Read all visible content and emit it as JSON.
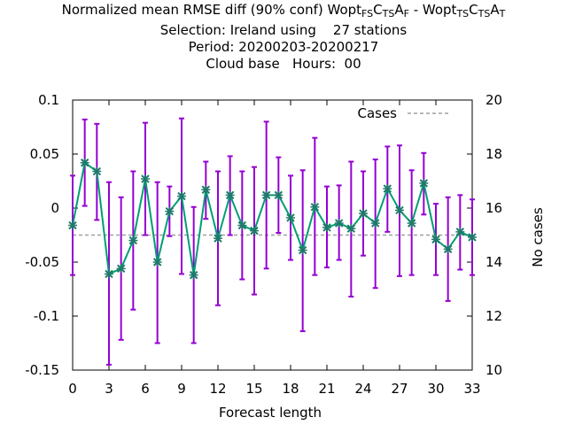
{
  "title": {
    "line1_prefix": "Normalized mean RMSE diff (90% conf) Wopt",
    "line1_mid": " - Wopt",
    "sub1": [
      [
        "FS",
        "sub"
      ],
      [
        "C",
        "base"
      ],
      [
        "TS",
        "sub"
      ],
      [
        "A",
        "base"
      ],
      [
        "F",
        "sub"
      ]
    ],
    "sub2": [
      [
        "TS",
        "sub"
      ],
      [
        "C",
        "base"
      ],
      [
        "TS",
        "sub"
      ],
      [
        "A",
        "base"
      ],
      [
        "T",
        "sub"
      ]
    ],
    "line2": "Selection: Ireland using    27 stations",
    "line3": "Period: 20200203-20200217",
    "line4": "Cloud base   Hours:  00"
  },
  "chart_data": {
    "type": "line",
    "xlabel": "Forecast length",
    "ylabel": "",
    "y2label": "No cases",
    "xlim": [
      0,
      33
    ],
    "ylim": [
      -0.15,
      0.1
    ],
    "y2lim": [
      10,
      20
    ],
    "xticks": [
      "0",
      "3",
      "6",
      "9",
      "12",
      "15",
      "18",
      "21",
      "24",
      "27",
      "30",
      "33"
    ],
    "yticks": [
      "0.1",
      "0.05",
      "0",
      "-0.05",
      "-0.1",
      "-0.15"
    ],
    "y2ticks": [
      "20",
      "18",
      "16",
      "14",
      "12",
      "10"
    ],
    "legend_position": "top-right",
    "series": [
      {
        "name": "",
        "color": "#009e73",
        "marker_color": "#1f7a6b",
        "error_color": "#9400d3",
        "x": [
          0,
          1,
          2,
          3,
          4,
          5,
          6,
          7,
          8,
          9,
          10,
          11,
          12,
          13,
          14,
          15,
          16,
          17,
          18,
          19,
          20,
          21,
          22,
          23,
          24,
          25,
          26,
          27,
          28,
          29,
          30,
          31,
          32,
          33
        ],
        "y": [
          -0.016,
          0.042,
          0.034,
          -0.061,
          -0.056,
          -0.03,
          0.027,
          -0.05,
          -0.003,
          0.011,
          -0.062,
          0.017,
          -0.028,
          0.012,
          -0.016,
          -0.021,
          0.012,
          0.012,
          -0.009,
          -0.039,
          0.001,
          -0.018,
          -0.014,
          -0.019,
          -0.005,
          -0.014,
          0.018,
          -0.002,
          -0.014,
          0.023,
          -0.029,
          -0.038,
          -0.022,
          -0.027
        ],
        "y_low": [
          -0.062,
          0.002,
          -0.011,
          -0.145,
          -0.122,
          -0.094,
          -0.025,
          -0.125,
          -0.026,
          -0.061,
          -0.125,
          -0.01,
          -0.09,
          -0.025,
          -0.066,
          -0.08,
          -0.056,
          -0.023,
          -0.048,
          -0.114,
          -0.062,
          -0.055,
          -0.048,
          -0.082,
          -0.044,
          -0.074,
          -0.022,
          -0.063,
          -0.062,
          -0.006,
          -0.062,
          -0.086,
          -0.057,
          -0.062
        ],
        "y_high": [
          0.03,
          0.082,
          0.078,
          0.024,
          0.01,
          0.034,
          0.079,
          0.024,
          0.02,
          0.083,
          0.001,
          0.043,
          0.034,
          0.048,
          0.034,
          0.038,
          0.08,
          0.047,
          0.03,
          0.035,
          0.065,
          0.02,
          0.021,
          0.043,
          0.034,
          0.045,
          0.057,
          0.058,
          0.035,
          0.051,
          0.004,
          0.01,
          0.012,
          0.008
        ]
      },
      {
        "name": "Cases",
        "color": "#a0a0a0",
        "axis": "y2",
        "x": [
          0,
          33
        ],
        "y": [
          15,
          15
        ]
      }
    ]
  }
}
